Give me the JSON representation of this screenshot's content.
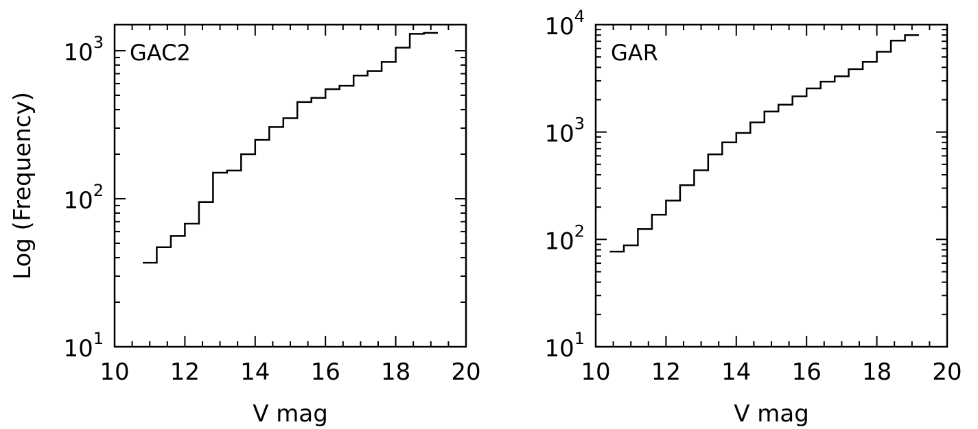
{
  "chart_data": [
    {
      "type": "histogram",
      "label": "GAC2",
      "xlabel": "V mag",
      "ylabel": "Log (Frequency)",
      "xlim": [
        10,
        20
      ],
      "ylim": [
        10,
        1500
      ],
      "yscale": "log",
      "xticks": [
        "10",
        "12",
        "14",
        "16",
        "18",
        "20"
      ],
      "yticks": [
        {
          "base": "10",
          "exp": "1"
        },
        {
          "base": "10",
          "exp": "2"
        },
        {
          "base": "10",
          "exp": "3"
        }
      ],
      "bin_edges": [
        10.8,
        11.2,
        11.6,
        12.0,
        12.4,
        12.8,
        13.2,
        13.6,
        14.0,
        14.4,
        14.8,
        15.2,
        15.6,
        16.0,
        16.4,
        16.8,
        17.2,
        17.6,
        18.0,
        18.4,
        18.8,
        19.2
      ],
      "values": [
        37,
        47,
        56,
        68,
        95,
        150,
        155,
        200,
        250,
        305,
        350,
        450,
        480,
        550,
        580,
        680,
        730,
        840,
        1050,
        1300,
        1320
      ]
    },
    {
      "type": "histogram",
      "label": "GAR",
      "xlabel": "V mag",
      "ylabel": "",
      "xlim": [
        10,
        20
      ],
      "ylim": [
        10,
        10000
      ],
      "yscale": "log",
      "xticks": [
        "10",
        "12",
        "14",
        "16",
        "18",
        "20"
      ],
      "yticks": [
        {
          "base": "10",
          "exp": "1"
        },
        {
          "base": "10",
          "exp": "2"
        },
        {
          "base": "10",
          "exp": "3"
        },
        {
          "base": "10",
          "exp": "4"
        }
      ],
      "bin_edges": [
        10.4,
        10.8,
        11.2,
        11.6,
        12.0,
        12.4,
        12.8,
        13.2,
        13.6,
        14.0,
        14.4,
        14.8,
        15.2,
        15.6,
        16.0,
        16.4,
        16.8,
        17.2,
        17.6,
        18.0,
        18.4,
        18.8,
        19.2
      ],
      "values": [
        77,
        88,
        125,
        170,
        230,
        320,
        440,
        620,
        800,
        980,
        1230,
        1550,
        1800,
        2150,
        2550,
        2950,
        3300,
        3850,
        4500,
        5600,
        7100,
        8000
      ]
    }
  ]
}
